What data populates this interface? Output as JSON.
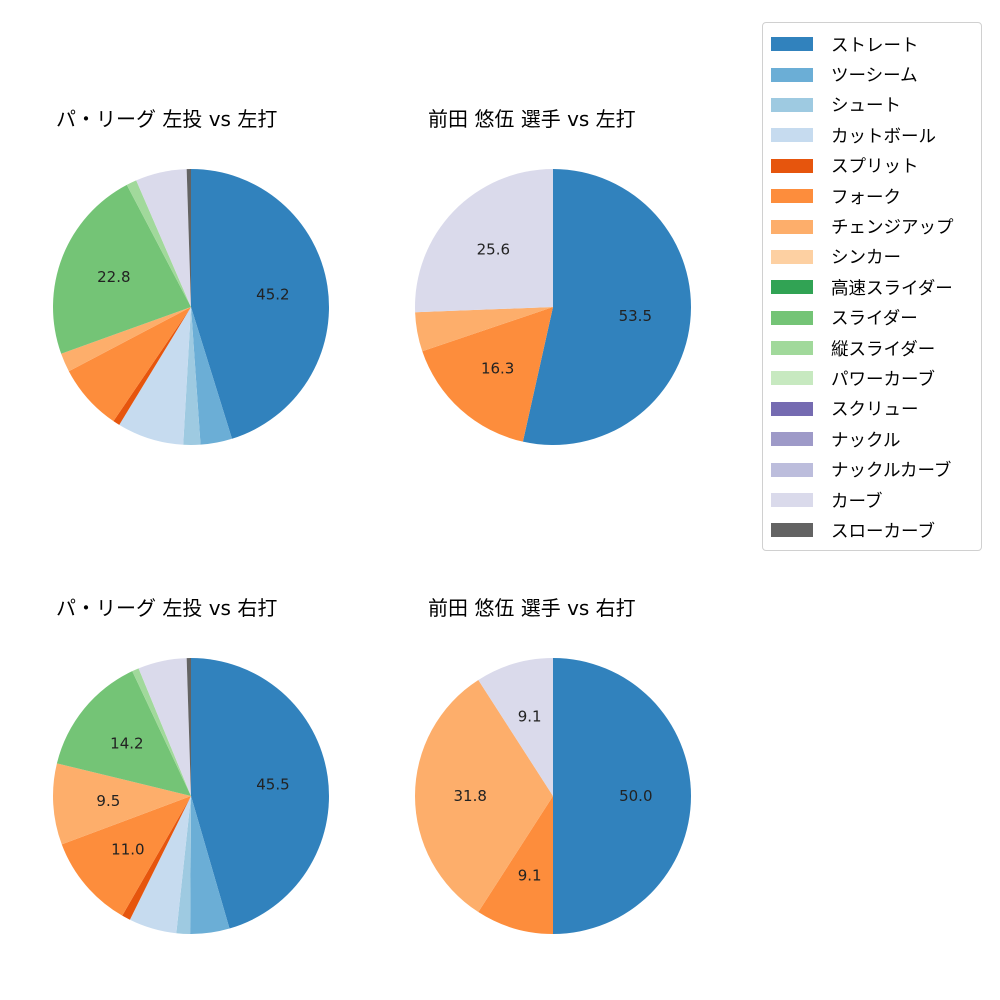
{
  "legend": {
    "items": [
      {
        "label": "ストレート",
        "color": "#3182bd"
      },
      {
        "label": "ツーシーム",
        "color": "#6baed6"
      },
      {
        "label": "シュート",
        "color": "#9ecae1"
      },
      {
        "label": "カットボール",
        "color": "#c6dbef"
      },
      {
        "label": "スプリット",
        "color": "#e6550d"
      },
      {
        "label": "フォーク",
        "color": "#fd8d3c"
      },
      {
        "label": "チェンジアップ",
        "color": "#fdae6b"
      },
      {
        "label": "シンカー",
        "color": "#fdd0a2"
      },
      {
        "label": "高速スライダー",
        "color": "#31a354"
      },
      {
        "label": "スライダー",
        "color": "#74c476"
      },
      {
        "label": "縦スライダー",
        "color": "#a1d99b"
      },
      {
        "label": "パワーカーブ",
        "color": "#c7e9c0"
      },
      {
        "label": "スクリュー",
        "color": "#756bb1"
      },
      {
        "label": "ナックル",
        "color": "#9e9ac8"
      },
      {
        "label": "ナックルカーブ",
        "color": "#bcbddc"
      },
      {
        "label": "カーブ",
        "color": "#dadaeb"
      },
      {
        "label": "スローカーブ",
        "color": "#636363"
      }
    ]
  },
  "chart_data": [
    {
      "type": "pie",
      "title": "パ・リーグ 左投 vs 左打",
      "categories": [
        "ストレート",
        "ツーシーム",
        "シュート",
        "カットボール",
        "スプリット",
        "フォーク",
        "チェンジアップ",
        "スライダー",
        "縦スライダー",
        "カーブ",
        "スローカーブ"
      ],
      "values": [
        45.2,
        3.7,
        2.0,
        7.8,
        0.8,
        7.8,
        2.2,
        22.8,
        1.2,
        6.0,
        0.5
      ],
      "labels_shown": [
        "45.2",
        "22.8"
      ],
      "start_angle": 90,
      "direction": "clockwise"
    },
    {
      "type": "pie",
      "title": "前田 悠伍 選手 vs 左打",
      "categories": [
        "ストレート",
        "フォーク",
        "チェンジアップ",
        "カーブ"
      ],
      "values": [
        53.5,
        16.3,
        4.6,
        25.6
      ],
      "labels_shown": [
        "53.5",
        "16.3",
        "25.6"
      ],
      "start_angle": 90,
      "direction": "clockwise"
    },
    {
      "type": "pie",
      "title": "パ・リーグ 左投 vs 右打",
      "categories": [
        "ストレート",
        "ツーシーム",
        "シュート",
        "カットボール",
        "スプリット",
        "フォーク",
        "チェンジアップ",
        "スライダー",
        "縦スライダー",
        "カーブ",
        "スローカーブ"
      ],
      "values": [
        45.5,
        4.6,
        1.6,
        5.6,
        1.0,
        11.0,
        9.5,
        14.2,
        0.8,
        5.7,
        0.5
      ],
      "labels_shown": [
        "45.5",
        "11.0",
        "9.5",
        "14.2"
      ],
      "start_angle": 90,
      "direction": "clockwise"
    },
    {
      "type": "pie",
      "title": "前田 悠伍 選手 vs 右打",
      "categories": [
        "ストレート",
        "フォーク",
        "チェンジアップ",
        "カーブ"
      ],
      "values": [
        50.0,
        9.1,
        31.8,
        9.1
      ],
      "labels_shown": [
        "50.0",
        "9.1",
        "31.8",
        "9.1"
      ],
      "start_angle": 90,
      "direction": "clockwise"
    }
  ],
  "panels": [
    {
      "title": "パ・リーグ 左投 vs 左打"
    },
    {
      "title": "前田 悠伍 選手 vs 左打"
    },
    {
      "title": "パ・リーグ 左投 vs 右打"
    },
    {
      "title": "前田 悠伍 選手 vs 右打"
    }
  ]
}
